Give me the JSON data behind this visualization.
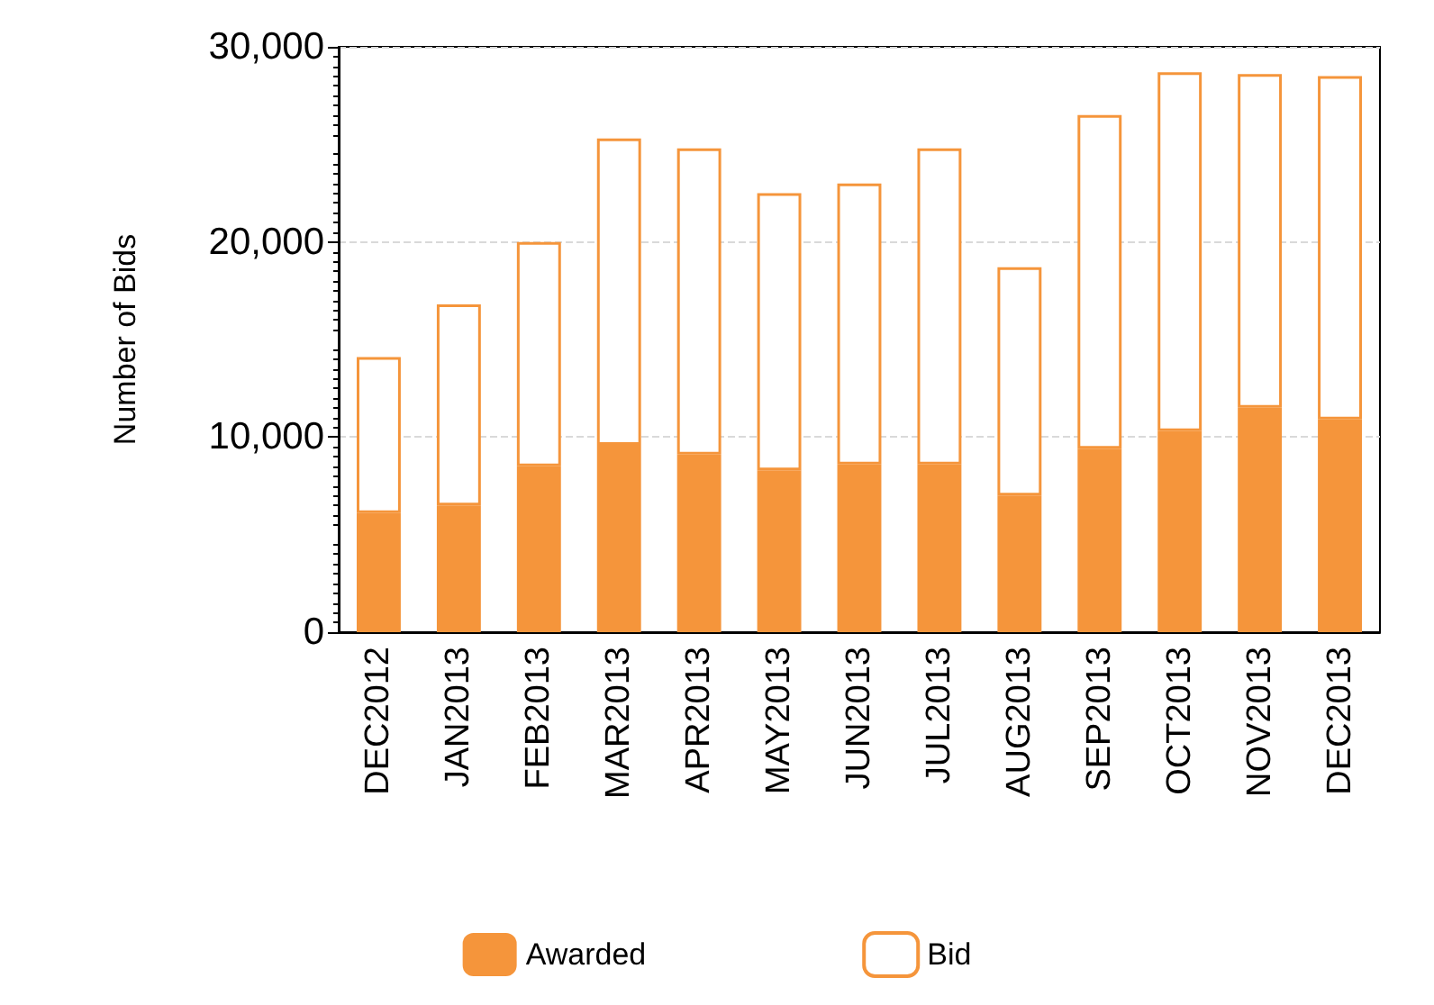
{
  "chart_data": {
    "type": "bar",
    "ylabel": "Number of Bids",
    "stacked": true,
    "categories": [
      "DEC2012",
      "JAN2013",
      "FEB2013",
      "MAR2013",
      "APR2013",
      "MAY2013",
      "JUN2013",
      "JUL2013",
      "AUG2013",
      "SEP2013",
      "OCT2013",
      "NOV2013",
      "DEC2013"
    ],
    "series": [
      {
        "name": "Awarded",
        "color": "#f5953b",
        "values": [
          6100,
          6500,
          8500,
          9600,
          9100,
          8300,
          8600,
          8600,
          7000,
          9400,
          10300,
          11500,
          10900
        ]
      },
      {
        "name": "Bid",
        "color": "#f5953b",
        "values": [
          8000,
          10300,
          11500,
          15700,
          15700,
          14200,
          14400,
          16200,
          11700,
          17100,
          18400,
          17100,
          17600
        ]
      }
    ],
    "ylim": [
      0,
      30000
    ],
    "yticks": [
      0,
      {
        "value": 10000,
        "label": "10,000"
      },
      {
        "value": 20000,
        "label": "20,000"
      },
      {
        "value": 30000,
        "label": "30,000"
      }
    ],
    "grid": "y",
    "legend": "bottom"
  }
}
